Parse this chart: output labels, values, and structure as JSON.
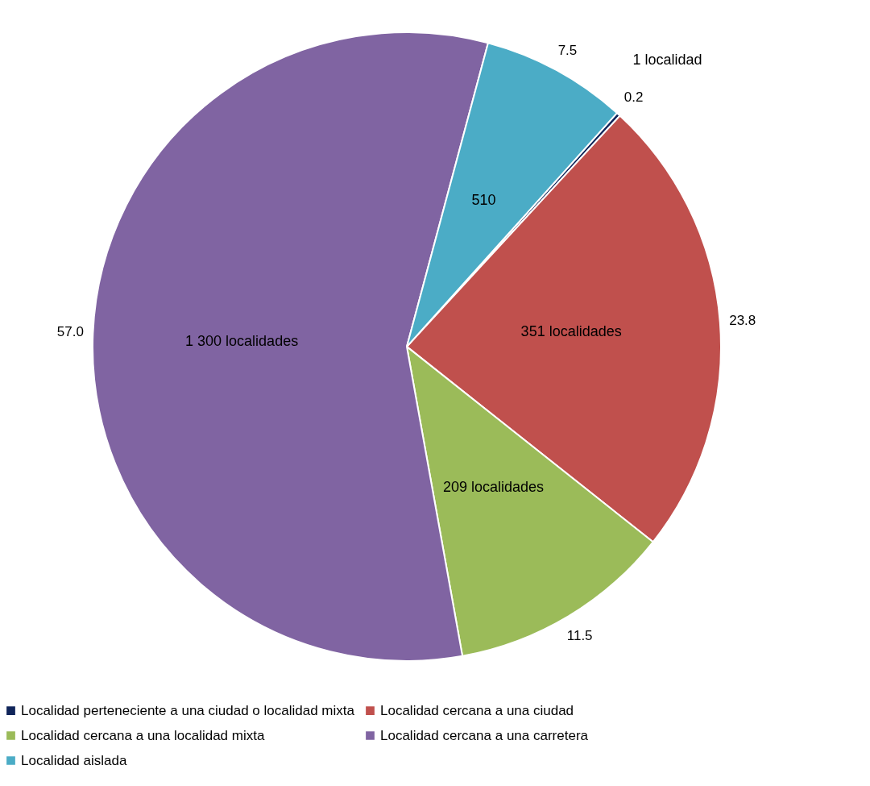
{
  "chart_data": {
    "type": "pie",
    "categories": [
      "Localidad perteneciente a una ciudad o localidad mixta",
      "Localidad cercana a una ciudad",
      "Localidad cercana a una localidad mixta",
      "Localidad cercana a una carretera",
      "Localidad aislada"
    ],
    "values": [
      0.2,
      23.8,
      11.5,
      57.0,
      7.5
    ],
    "colors": [
      "#10255a",
      "#c0504d",
      "#9bbb59",
      "#8064a2",
      "#4bacc6"
    ],
    "value_labels": [
      "0.2",
      "23.8",
      "11.5",
      "57.0",
      "7.5"
    ],
    "legend": "bottom",
    "annotations": [
      "1 localidad",
      "351 localidades",
      "209 localidades",
      "1 300 localidades",
      "510"
    ]
  }
}
